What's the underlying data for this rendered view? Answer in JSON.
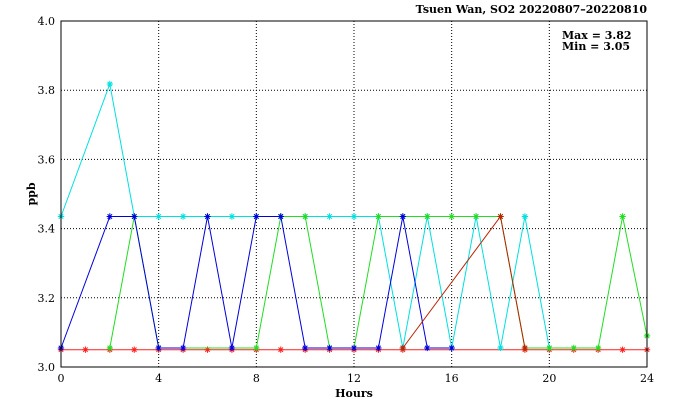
{
  "chart_data": {
    "type": "line",
    "title": "Tsuen Wan, SO2 20220807–20220810",
    "xlabel": "Hours",
    "ylabel": "ppb",
    "xlim": [
      0,
      24
    ],
    "ylim": [
      3.0,
      4.0
    ],
    "x_ticks": [
      0,
      4,
      8,
      12,
      16,
      20,
      24
    ],
    "y_ticks": [
      3.0,
      3.2,
      3.4,
      3.6,
      3.8,
      4.0
    ],
    "x_tick_labels": [
      "0",
      "4",
      "8",
      "12",
      "16",
      "20",
      "24"
    ],
    "y_tick_labels": [
      "3.0",
      "3.2",
      "3.4",
      "3.6",
      "3.8",
      "4.0"
    ],
    "grid": true,
    "marker": "asterisk",
    "stats": {
      "max_label": "Max = 3.82",
      "min_label": "Min = 3.05"
    },
    "series": [
      {
        "color": "#ff2020",
        "x": [
          0,
          1,
          2,
          3,
          4,
          5,
          6,
          7,
          8,
          9,
          10,
          11,
          12,
          13,
          14,
          15,
          16,
          17,
          18,
          19,
          20,
          21,
          22,
          23,
          24
        ],
        "y": [
          3.05,
          3.05,
          3.05,
          3.05,
          3.05,
          3.05,
          3.05,
          3.05,
          3.05,
          3.05,
          3.05,
          3.05,
          3.05,
          3.05,
          3.05,
          null,
          null,
          null,
          null,
          3.05,
          3.05,
          3.05,
          3.05,
          3.05,
          3.05
        ]
      },
      {
        "color": "#00e0e0",
        "x": [
          0,
          1,
          2,
          3,
          4,
          5,
          6,
          7,
          8,
          9,
          10,
          11,
          12,
          13,
          14,
          15,
          16,
          17,
          18,
          19,
          20,
          21,
          22,
          23,
          24
        ],
        "y": [
          3.435,
          null,
          3.818,
          3.435,
          3.435,
          3.435,
          3.435,
          3.435,
          3.435,
          3.435,
          3.435,
          3.435,
          3.435,
          3.435,
          3.055,
          3.435,
          3.055,
          3.435,
          3.055,
          3.435,
          3.055,
          null,
          null,
          null,
          null
        ]
      },
      {
        "color": "#22dd22",
        "x": [
          0,
          1,
          2,
          3,
          4,
          5,
          6,
          7,
          8,
          9,
          10,
          11,
          12,
          13,
          14,
          15,
          16,
          17,
          18,
          19,
          20,
          21,
          22,
          23,
          24
        ],
        "y": [
          null,
          null,
          3.055,
          3.435,
          3.055,
          null,
          null,
          null,
          3.055,
          3.435,
          3.435,
          3.055,
          3.055,
          3.435,
          3.435,
          3.435,
          3.435,
          3.435,
          3.435,
          3.055,
          3.055,
          3.055,
          3.055,
          3.435,
          3.09
        ]
      },
      {
        "color": "#0000dd",
        "x": [
          0,
          1,
          2,
          3,
          4,
          5,
          6,
          7,
          8,
          9,
          10,
          11,
          12,
          13,
          14,
          15,
          16,
          17,
          18,
          19,
          20,
          21,
          22,
          23,
          24
        ],
        "y": [
          3.055,
          null,
          3.435,
          3.435,
          3.055,
          3.055,
          3.435,
          3.055,
          3.435,
          3.435,
          3.055,
          3.055,
          3.055,
          3.055,
          3.435,
          3.055,
          3.055,
          null,
          null,
          null,
          null,
          null,
          null,
          null,
          null
        ]
      },
      {
        "color": "#bb2200",
        "x": [
          14,
          18,
          19
        ],
        "y": [
          3.055,
          3.435,
          3.055
        ]
      }
    ]
  }
}
